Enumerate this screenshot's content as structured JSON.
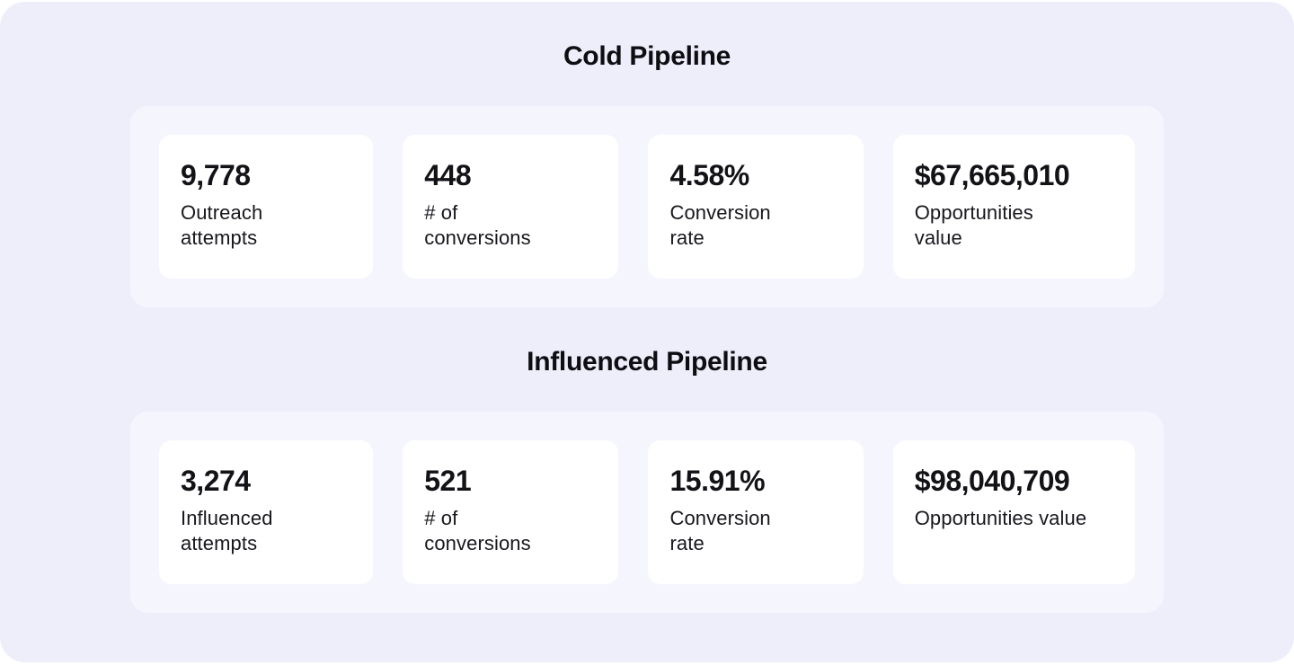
{
  "theme": {
    "page_bg": "#FFFFFF",
    "container_bg": "#EEEDFA",
    "panel_bg": "#F5F6FD",
    "card_bg": "#FFFFFF",
    "title_color": "#0D0D12",
    "value_color": "#121217",
    "label_color": "#17171D"
  },
  "sections": [
    {
      "title": "Cold Pipeline",
      "cards": [
        {
          "value": "9,778",
          "label": "Outreach\nattempts"
        },
        {
          "value": "448",
          "label": "# of\nconversions"
        },
        {
          "value": "4.58%",
          "label": "Conversion\nrate"
        },
        {
          "value": "$67,665,010",
          "label": "Opportunities\nvalue"
        }
      ]
    },
    {
      "title": "Influenced Pipeline",
      "cards": [
        {
          "value": "3,274",
          "label": "Influenced\nattempts"
        },
        {
          "value": "521",
          "label": "# of\nconversions"
        },
        {
          "value": "15.91%",
          "label": "Conversion\nrate"
        },
        {
          "value": "$98,040,709",
          "label": "Opportunities value"
        }
      ]
    }
  ]
}
